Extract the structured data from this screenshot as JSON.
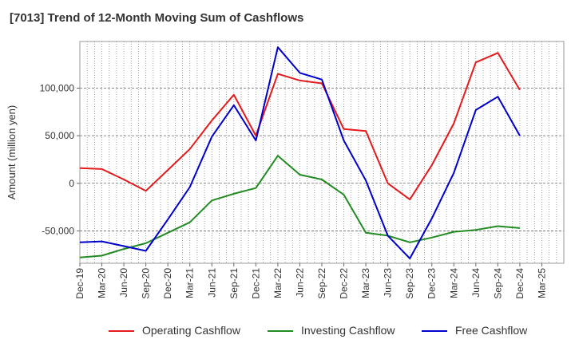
{
  "chart_data": {
    "type": "line",
    "title": "[7013]  Trend of 12-Month Moving Sum of Cashflows",
    "xlabel": "",
    "ylabel": "Amount (million yen)",
    "ylim": [
      -84000,
      149000
    ],
    "yticks": [
      -50000,
      0,
      50000,
      100000
    ],
    "ytick_labels": [
      "-50,000",
      "0",
      "50,000",
      "100,000"
    ],
    "categories": [
      "Dec-19",
      "Mar-20",
      "Jun-20",
      "Sep-20",
      "Dec-20",
      "Mar-21",
      "Jun-21",
      "Sep-21",
      "Dec-21",
      "Mar-22",
      "Jun-22",
      "Sep-22",
      "Dec-22",
      "Mar-23",
      "Jun-23",
      "Sep-23",
      "Dec-23",
      "Mar-24",
      "Jun-24",
      "Sep-24",
      "Dec-24",
      "Mar-25"
    ],
    "grid": true,
    "legend_position": "bottom",
    "series": [
      {
        "name": "Operating Cashflow",
        "color": "#e41a1c",
        "values": [
          16000,
          15000,
          4000,
          -8000,
          14000,
          36000,
          66000,
          93000,
          50000,
          115000,
          108000,
          105000,
          57000,
          55000,
          0,
          -17000,
          19000,
          63000,
          127000,
          137000,
          98000,
          null
        ]
      },
      {
        "name": "Investing Cashflow",
        "color": "#228b22",
        "values": [
          -78000,
          -76000,
          -69000,
          -63000,
          -52000,
          -41000,
          -18000,
          -11000,
          -5000,
          29000,
          9000,
          4000,
          -12000,
          -52000,
          -55000,
          -62000,
          -57000,
          -51000,
          -49000,
          -45000,
          -47000,
          null
        ]
      },
      {
        "name": "Free Cashflow",
        "color": "#0000cd",
        "values": [
          -62000,
          -61000,
          -66000,
          -71000,
          -38000,
          -4000,
          49000,
          82000,
          45000,
          143000,
          116000,
          109000,
          45000,
          3000,
          -55000,
          -79000,
          -37000,
          11000,
          77000,
          91000,
          50000,
          null
        ]
      }
    ]
  }
}
